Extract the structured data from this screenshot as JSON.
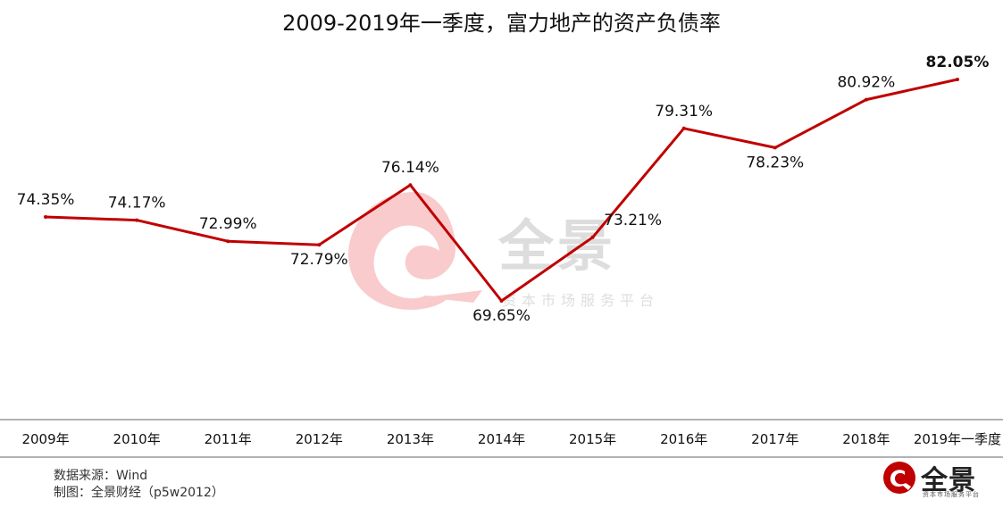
{
  "title": "2009-2019年一季度，富力地产的资产负债率",
  "chart_data": {
    "type": "line",
    "title": "2009-2019年一季度，富力地产的资产负债率",
    "categories": [
      "2009年",
      "2010年",
      "2011年",
      "2012年",
      "2013年",
      "2014年",
      "2015年",
      "2016年",
      "2017年",
      "2018年",
      "2019年一季度"
    ],
    "series": [
      {
        "values": [
          74.35,
          74.17,
          72.99,
          72.79,
          76.14,
          69.65,
          73.21,
          79.31,
          78.23,
          80.92,
          82.05
        ]
      }
    ],
    "data_labels": [
      "74.35%",
      "74.17%",
      "72.99%",
      "72.79%",
      "76.14%",
      "69.65%",
      "73.21%",
      "79.31%",
      "78.23%",
      "80.92%",
      "82.05%"
    ],
    "highlight_last_label": true,
    "ylim": [
      65,
      84
    ],
    "grid": false,
    "legend": "none",
    "line_color": "#c00000"
  },
  "footer": {
    "source": "数据来源：Wind",
    "author": "制图：全景财经（p5w2012）"
  },
  "watermark": {
    "text": "全景",
    "subtext": "资本市场服务平台"
  },
  "logo": {
    "text": "全景",
    "subtext": "资本市场服务平台"
  },
  "colors": {
    "brand_red": "#c00000",
    "watermark_red": "#e8333a"
  }
}
